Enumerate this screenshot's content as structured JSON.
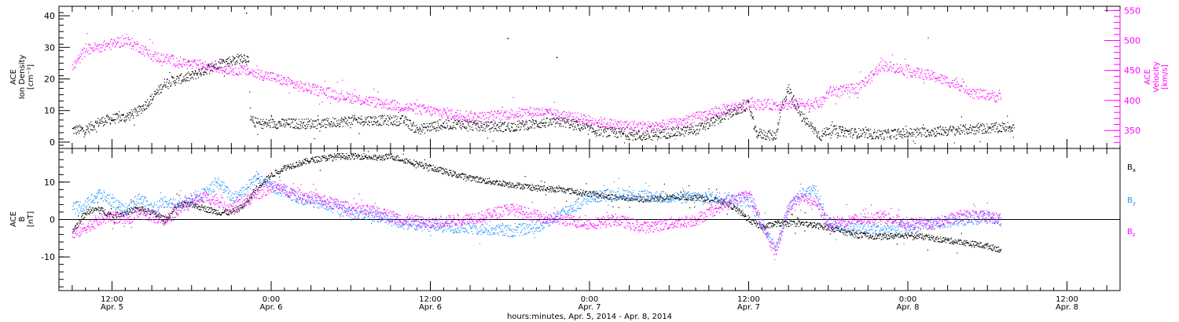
{
  "chart_data": [
    {
      "type": "scatter",
      "panel": "top",
      "xlabel": "hours:minutes, Apr.  5, 2014 - Apr.  8, 2014",
      "x_ticks": [
        {
          "hours": 12,
          "time": "12:00",
          "date": "Apr. 5"
        },
        {
          "hours": 24,
          "time": "0:00",
          "date": "Apr. 6"
        },
        {
          "hours": 36,
          "time": "12:00",
          "date": "Apr. 6"
        },
        {
          "hours": 48,
          "time": "0:00",
          "date": "Apr. 7"
        },
        {
          "hours": 60,
          "time": "12:00",
          "date": "Apr. 7"
        },
        {
          "hours": 72,
          "time": "0:00",
          "date": "Apr. 8"
        },
        {
          "hours": 84,
          "time": "12:00",
          "date": "Apr. 8"
        }
      ],
      "xlim_hours": [
        8,
        88
      ],
      "grid": false,
      "left_axis": {
        "label": [
          "ACE",
          "Ion Density",
          "[cm⁻³]"
        ],
        "ylim": [
          -2,
          43
        ],
        "ticks": [
          "0",
          "10",
          "20",
          "30",
          "40"
        ],
        "tick_values": [
          0,
          10,
          20,
          30,
          40
        ]
      },
      "right_axis": {
        "label": [
          "ACE",
          "Velocity",
          "[km/s]"
        ],
        "ylim": [
          320,
          557
        ],
        "ticks": [
          "350",
          "400",
          "450",
          "500",
          "550"
        ],
        "tick_values": [
          350,
          400,
          450,
          500,
          550
        ],
        "color": "#ff00ff"
      },
      "series": [
        {
          "axis": "left",
          "color": "#000000",
          "points": [
            [
              9,
              4
            ],
            [
              10,
              4
            ],
            [
              11,
              6.5
            ],
            [
              12,
              7.5
            ],
            [
              13,
              8
            ],
            [
              14,
              10
            ],
            [
              15,
              14
            ],
            [
              16,
              19
            ],
            [
              17,
              20
            ],
            [
              18,
              21
            ],
            [
              19,
              23
            ],
            [
              20,
              25
            ],
            [
              21,
              26
            ],
            [
              22,
              27
            ],
            [
              22.3,
              25
            ],
            [
              22.4,
              7
            ],
            [
              23,
              6
            ],
            [
              24,
              6
            ],
            [
              26,
              6
            ],
            [
              28,
              6
            ],
            [
              30,
              7
            ],
            [
              32,
              7
            ],
            [
              34,
              7
            ],
            [
              35,
              4
            ],
            [
              36,
              5
            ],
            [
              38,
              6
            ],
            [
              40,
              5
            ],
            [
              42,
              5
            ],
            [
              44,
              6
            ],
            [
              46,
              6.5
            ],
            [
              47,
              5.5
            ],
            [
              48,
              4
            ],
            [
              50,
              3
            ],
            [
              52,
              2
            ],
            [
              54,
              3
            ],
            [
              56,
              4
            ],
            [
              57,
              6
            ],
            [
              58,
              8
            ],
            [
              59,
              10
            ],
            [
              60,
              12
            ],
            [
              60.5,
              3
            ],
            [
              62,
              2
            ],
            [
              62.5,
              12
            ],
            [
              63,
              17
            ],
            [
              63.5,
              12
            ],
            [
              64,
              8
            ],
            [
              65.4,
              2
            ],
            [
              66,
              4
            ],
            [
              68,
              3
            ],
            [
              70,
              2.5
            ],
            [
              72,
              3
            ],
            [
              74,
              3.5
            ],
            [
              76,
              4
            ],
            [
              78,
              4.5
            ],
            [
              80,
              5
            ]
          ],
          "outliers": [
            [
              22.1,
              41
            ],
            [
              45.5,
              27
            ],
            [
              41.8,
              33
            ],
            [
              67,
              4
            ]
          ]
        },
        {
          "axis": "right",
          "color": "#ff00ff",
          "points": [
            [
              9,
              455
            ],
            [
              10,
              485
            ],
            [
              11,
              490
            ],
            [
              12,
              495
            ],
            [
              13,
              500
            ],
            [
              14,
              490
            ],
            [
              15,
              475
            ],
            [
              16,
              470
            ],
            [
              17,
              465
            ],
            [
              18,
              460
            ],
            [
              19,
              458
            ],
            [
              20,
              455
            ],
            [
              22,
              450
            ],
            [
              24,
              440
            ],
            [
              26,
              425
            ],
            [
              28,
              415
            ],
            [
              30,
              405
            ],
            [
              32,
              397
            ],
            [
              34,
              390
            ],
            [
              36,
              383
            ],
            [
              38,
              377
            ],
            [
              40,
              373
            ],
            [
              42,
              378
            ],
            [
              44,
              382
            ],
            [
              46,
              375
            ],
            [
              48,
              367
            ],
            [
              50,
              360
            ],
            [
              52,
              357
            ],
            [
              54,
              360
            ],
            [
              56,
              372
            ],
            [
              58,
              385
            ],
            [
              60,
              395
            ],
            [
              62,
              393
            ],
            [
              64,
              395
            ],
            [
              65.5,
              397
            ],
            [
              66,
              415
            ],
            [
              68,
              420
            ],
            [
              69,
              435
            ],
            [
              70,
              460
            ],
            [
              71,
              455
            ],
            [
              72,
              450
            ],
            [
              74,
              440
            ],
            [
              76,
              425
            ],
            [
              77,
              412
            ],
            [
              78,
              410
            ],
            [
              79,
              405
            ]
          ],
          "outliers": [
            [
              13.5,
              550
            ],
            [
              73.5,
              505
            ]
          ]
        }
      ]
    },
    {
      "type": "scatter",
      "panel": "bottom",
      "xlim_hours": [
        8,
        88
      ],
      "grid": false,
      "left_axis": {
        "label": [
          "ACE",
          "B",
          "[nT]"
        ],
        "ylim": [
          -19,
          19
        ],
        "ticks": [
          "-10",
          "0",
          "10"
        ],
        "tick_values": [
          -10,
          0,
          10
        ]
      },
      "zero_line": true,
      "series": [
        {
          "name": "Bx",
          "color": "#000000",
          "points": [
            [
              9,
              -3
            ],
            [
              10,
              2
            ],
            [
              11,
              3
            ],
            [
              12,
              1
            ],
            [
              13,
              2
            ],
            [
              14,
              3
            ],
            [
              15,
              2
            ],
            [
              16,
              0
            ],
            [
              17,
              4
            ],
            [
              18,
              4
            ],
            [
              19,
              3
            ],
            [
              20,
              2
            ],
            [
              21,
              2
            ],
            [
              22,
              4
            ],
            [
              23,
              9
            ],
            [
              24,
              12
            ],
            [
              25,
              14
            ],
            [
              26,
              15
            ],
            [
              27,
              16
            ],
            [
              28,
              16.5
            ],
            [
              29,
              17
            ],
            [
              30,
              17
            ],
            [
              31,
              17
            ],
            [
              32,
              16.5
            ],
            [
              33,
              17
            ],
            [
              34,
              16
            ],
            [
              35,
              15
            ],
            [
              36,
              14
            ],
            [
              38,
              12
            ],
            [
              40,
              10.5
            ],
            [
              42,
              9.5
            ],
            [
              44,
              8.5
            ],
            [
              46,
              8
            ],
            [
              48,
              7
            ],
            [
              50,
              6
            ],
            [
              52,
              5.5
            ],
            [
              54,
              6
            ],
            [
              56,
              6
            ],
            [
              58,
              5
            ],
            [
              59,
              3
            ],
            [
              60,
              0
            ],
            [
              61,
              -2
            ],
            [
              62,
              -1
            ],
            [
              64,
              -1
            ],
            [
              66,
              -2
            ],
            [
              68,
              -4
            ],
            [
              70,
              -4.5
            ],
            [
              72,
              -4
            ],
            [
              74,
              -5
            ],
            [
              76,
              -6
            ],
            [
              78,
              -7
            ],
            [
              79,
              -8
            ]
          ]
        },
        {
          "name": "By",
          "color": "#1e90ff",
          "points": [
            [
              9,
              3
            ],
            [
              10,
              4
            ],
            [
              11,
              7
            ],
            [
              12,
              5
            ],
            [
              13,
              2
            ],
            [
              14,
              6
            ],
            [
              15,
              3
            ],
            [
              16,
              5
            ],
            [
              17,
              4
            ],
            [
              18,
              6
            ],
            [
              19,
              7
            ],
            [
              20,
              10
            ],
            [
              21,
              6
            ],
            [
              22,
              8
            ],
            [
              23,
              12
            ],
            [
              24,
              9
            ],
            [
              26,
              6
            ],
            [
              28,
              4
            ],
            [
              30,
              2
            ],
            [
              32,
              1
            ],
            [
              34,
              -1
            ],
            [
              36,
              -1.5
            ],
            [
              38,
              -2
            ],
            [
              40,
              -2.5
            ],
            [
              42,
              -3
            ],
            [
              44,
              -2
            ],
            [
              46,
              2
            ],
            [
              48,
              6
            ],
            [
              50,
              7
            ],
            [
              52,
              6.5
            ],
            [
              54,
              6
            ],
            [
              56,
              6
            ],
            [
              58,
              6
            ],
            [
              60,
              5
            ],
            [
              61,
              -1
            ],
            [
              62,
              -8
            ],
            [
              63,
              3
            ],
            [
              64,
              7
            ],
            [
              65,
              8
            ],
            [
              66,
              -1
            ],
            [
              68,
              -2
            ],
            [
              70,
              -2.5
            ],
            [
              72,
              -2
            ],
            [
              74,
              -1
            ],
            [
              76,
              0
            ],
            [
              78,
              1
            ],
            [
              79,
              0
            ]
          ]
        },
        {
          "name": "Bz",
          "color": "#ff00ff",
          "points": [
            [
              9,
              -4
            ],
            [
              10,
              -2
            ],
            [
              11,
              0
            ],
            [
              12,
              1
            ],
            [
              13,
              0
            ],
            [
              14,
              2
            ],
            [
              15,
              1
            ],
            [
              16,
              0
            ],
            [
              17,
              3
            ],
            [
              18,
              5
            ],
            [
              19,
              6
            ],
            [
              20,
              5
            ],
            [
              21,
              3
            ],
            [
              22,
              5
            ],
            [
              23,
              7
            ],
            [
              24,
              9
            ],
            [
              26,
              7
            ],
            [
              28,
              5
            ],
            [
              30,
              3
            ],
            [
              32,
              2
            ],
            [
              34,
              0
            ],
            [
              36,
              -1
            ],
            [
              38,
              0
            ],
            [
              40,
              1
            ],
            [
              42,
              3
            ],
            [
              44,
              1
            ],
            [
              46,
              0
            ],
            [
              48,
              -1
            ],
            [
              50,
              0
            ],
            [
              52,
              -2
            ],
            [
              54,
              -1
            ],
            [
              56,
              0
            ],
            [
              58,
              4
            ],
            [
              60,
              7
            ],
            [
              61,
              -1
            ],
            [
              62,
              -9
            ],
            [
              63,
              4
            ],
            [
              64,
              6
            ],
            [
              65,
              5
            ],
            [
              66,
              -1
            ],
            [
              68,
              0
            ],
            [
              70,
              1
            ],
            [
              72,
              -1
            ],
            [
              74,
              -1
            ],
            [
              76,
              1
            ],
            [
              78,
              1
            ],
            [
              79,
              0
            ]
          ]
        }
      ],
      "legend": {
        "placement": "right",
        "entries": [
          {
            "main": "B",
            "sub": "x",
            "color": "#000000"
          },
          {
            "main": "B",
            "sub": "y",
            "color": "#1e90ff"
          },
          {
            "main": "B",
            "sub": "z",
            "color": "#ff00ff"
          }
        ]
      }
    }
  ]
}
